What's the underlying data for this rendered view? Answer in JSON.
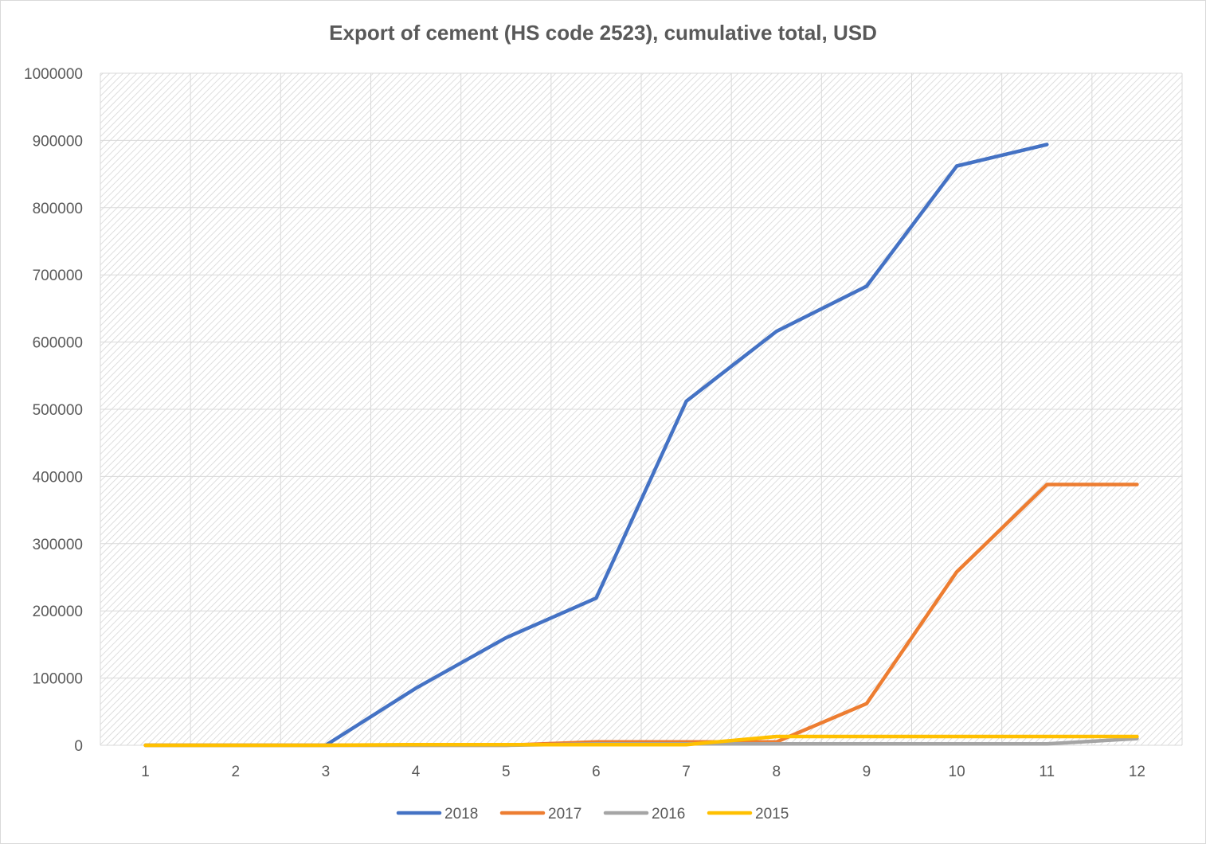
{
  "chart_data": {
    "type": "line",
    "title": "Export of cement (HS code 2523), cumulative total, USD",
    "xlabel": "",
    "ylabel": "",
    "categories": [
      "1",
      "2",
      "3",
      "4",
      "5",
      "6",
      "7",
      "8",
      "9",
      "10",
      "11",
      "12"
    ],
    "ylim": [
      0,
      1000000
    ],
    "yticks": [
      "0",
      "100000",
      "200000",
      "300000",
      "400000",
      "500000",
      "600000",
      "700000",
      "800000",
      "900000",
      "1000000"
    ],
    "grid": true,
    "legend_position": "bottom",
    "series": [
      {
        "name": "2018",
        "color": "#4472C4",
        "values": [
          0,
          0,
          0,
          85000,
          160000,
          219000,
          512000,
          616000,
          683000,
          862000,
          894000,
          null
        ]
      },
      {
        "name": "2017",
        "color": "#ED7D31",
        "values": [
          0,
          0,
          0,
          0,
          0,
          5000,
          5000,
          5000,
          62000,
          258000,
          388000,
          388000
        ]
      },
      {
        "name": "2016",
        "color": "#A5A5A5",
        "values": [
          0,
          0,
          0,
          0,
          0,
          2000,
          2000,
          2000,
          2000,
          2000,
          2000,
          10000
        ]
      },
      {
        "name": "2015",
        "color": "#FFC000",
        "values": [
          0,
          0,
          0,
          1000,
          1000,
          1000,
          1000,
          13000,
          13000,
          13000,
          13000,
          13000
        ]
      }
    ]
  }
}
